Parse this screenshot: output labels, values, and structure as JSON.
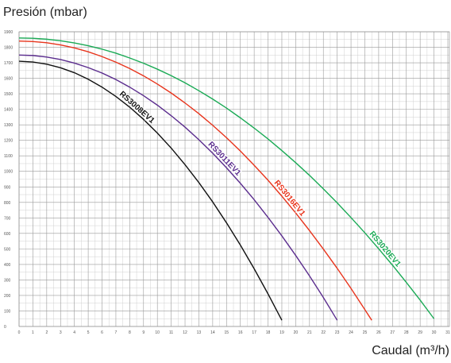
{
  "chart_data": {
    "type": "line",
    "y_label": "Presión (mbar)",
    "x_label": "Caudal (m³/h)",
    "xlim": [
      0,
      31
    ],
    "ylim": [
      0,
      1900
    ],
    "xticks": [
      0,
      1,
      2,
      3,
      4,
      5,
      6,
      7,
      8,
      9,
      10,
      11,
      12,
      13,
      14,
      15,
      16,
      17,
      18,
      19,
      20,
      21,
      22,
      23,
      24,
      25,
      26,
      27,
      28,
      29,
      30,
      31
    ],
    "yticks": [
      0,
      100,
      200,
      300,
      400,
      500,
      600,
      700,
      800,
      900,
      1000,
      1100,
      1200,
      1300,
      1400,
      1500,
      1600,
      1700,
      1800,
      1900
    ],
    "grid": true,
    "series": [
      {
        "name": "RS3008EV1",
        "color": "#111111",
        "x": [
          0,
          1,
          2,
          3,
          4,
          5,
          6,
          7,
          8,
          9,
          10,
          11,
          12,
          13,
          14,
          15,
          16,
          17,
          18,
          19
        ],
        "values": [
          1710,
          1705,
          1691,
          1668,
          1636,
          1594,
          1543,
          1483,
          1414,
          1335,
          1247,
          1150,
          1043,
          928,
          803,
          668,
          525,
          372,
          210,
          40
        ]
      },
      {
        "name": "RS3011EV1",
        "color": "#5b2d8e",
        "x": [
          0,
          1,
          2,
          3,
          4,
          5,
          6,
          7,
          8,
          9,
          10,
          11,
          12,
          13,
          14,
          15,
          16,
          17,
          18,
          19,
          20,
          21,
          22,
          23
        ],
        "values": [
          1750,
          1747,
          1737,
          1721,
          1698,
          1669,
          1634,
          1592,
          1543,
          1488,
          1427,
          1359,
          1285,
          1204,
          1117,
          1023,
          923,
          817,
          703,
          584,
          458,
          326,
          187,
          40
        ]
      },
      {
        "name": "RS3016EV1",
        "color": "#e8341c",
        "x": [
          0,
          1,
          2,
          3,
          4,
          5,
          6,
          7,
          8,
          9,
          10,
          11,
          12,
          13,
          14,
          15,
          16,
          17,
          18,
          19,
          20,
          21,
          22,
          23,
          24,
          25,
          25.5
        ],
        "values": [
          1840,
          1837,
          1829,
          1815,
          1796,
          1771,
          1740,
          1704,
          1663,
          1616,
          1563,
          1505,
          1441,
          1372,
          1297,
          1217,
          1131,
          1039,
          943,
          840,
          732,
          618,
          499,
          375,
          245,
          109,
          40
        ]
      },
      {
        "name": "RS3020EV1",
        "color": "#1aaa55",
        "x": [
          0,
          1,
          2,
          3,
          4,
          5,
          6,
          7,
          8,
          9,
          10,
          11,
          12,
          13,
          14,
          15,
          16,
          17,
          18,
          19,
          20,
          21,
          22,
          23,
          24,
          25,
          26,
          27,
          28,
          29,
          30
        ],
        "values": [
          1860,
          1858,
          1852,
          1842,
          1828,
          1810,
          1788,
          1762,
          1731,
          1697,
          1659,
          1617,
          1571,
          1520,
          1466,
          1408,
          1345,
          1279,
          1209,
          1134,
          1056,
          974,
          887,
          797,
          702,
          604,
          501,
          395,
          284,
          170,
          50
        ]
      }
    ]
  }
}
